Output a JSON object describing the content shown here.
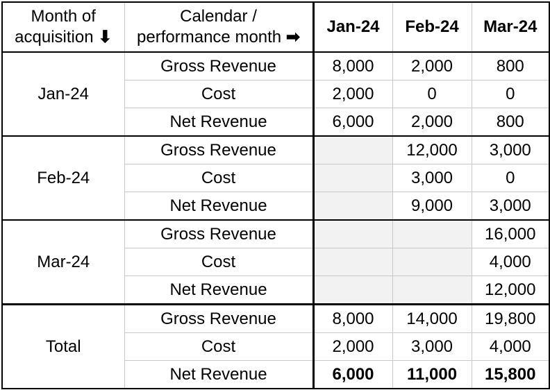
{
  "header": {
    "col1_line1": "Month of",
    "col1_line2": "acquisition",
    "col1_arrow": "🡇",
    "col2_line1": "Calendar /",
    "col2_line2": "performance month",
    "col2_arrow": "➡",
    "months": [
      "Jan-24",
      "Feb-24",
      "Mar-24"
    ]
  },
  "groups": [
    {
      "label": "Jan-24",
      "rows": [
        {
          "metric": "Gross Revenue",
          "values": [
            "8,000",
            "2,000",
            "800"
          ]
        },
        {
          "metric": "Cost",
          "values": [
            "2,000",
            "0",
            "0"
          ]
        },
        {
          "metric": "Net Revenue",
          "values": [
            "6,000",
            "2,000",
            "800"
          ]
        }
      ]
    },
    {
      "label": "Feb-24",
      "rows": [
        {
          "metric": "Gross Revenue",
          "values": [
            "",
            "12,000",
            "3,000"
          ]
        },
        {
          "metric": "Cost",
          "values": [
            "",
            "3,000",
            "0"
          ]
        },
        {
          "metric": "Net Revenue",
          "values": [
            "",
            "9,000",
            "3,000"
          ]
        }
      ]
    },
    {
      "label": "Mar-24",
      "rows": [
        {
          "metric": "Gross Revenue",
          "values": [
            "",
            "",
            "16,000"
          ]
        },
        {
          "metric": "Cost",
          "values": [
            "",
            "",
            "4,000"
          ]
        },
        {
          "metric": "Net Revenue",
          "values": [
            "",
            "",
            "12,000"
          ]
        }
      ]
    },
    {
      "label": "Total",
      "rows": [
        {
          "metric": "Gross Revenue",
          "values": [
            "8,000",
            "14,000",
            "19,800"
          ]
        },
        {
          "metric": "Cost",
          "values": [
            "2,000",
            "3,000",
            "4,000"
          ]
        },
        {
          "metric": "Net Revenue",
          "values": [
            "6,000",
            "11,000",
            "15,800"
          ]
        }
      ]
    }
  ],
  "colors": {
    "empty_cell": "#f2f2f2",
    "grid_line": "#c8c8c8",
    "thick_line": "#000000"
  }
}
